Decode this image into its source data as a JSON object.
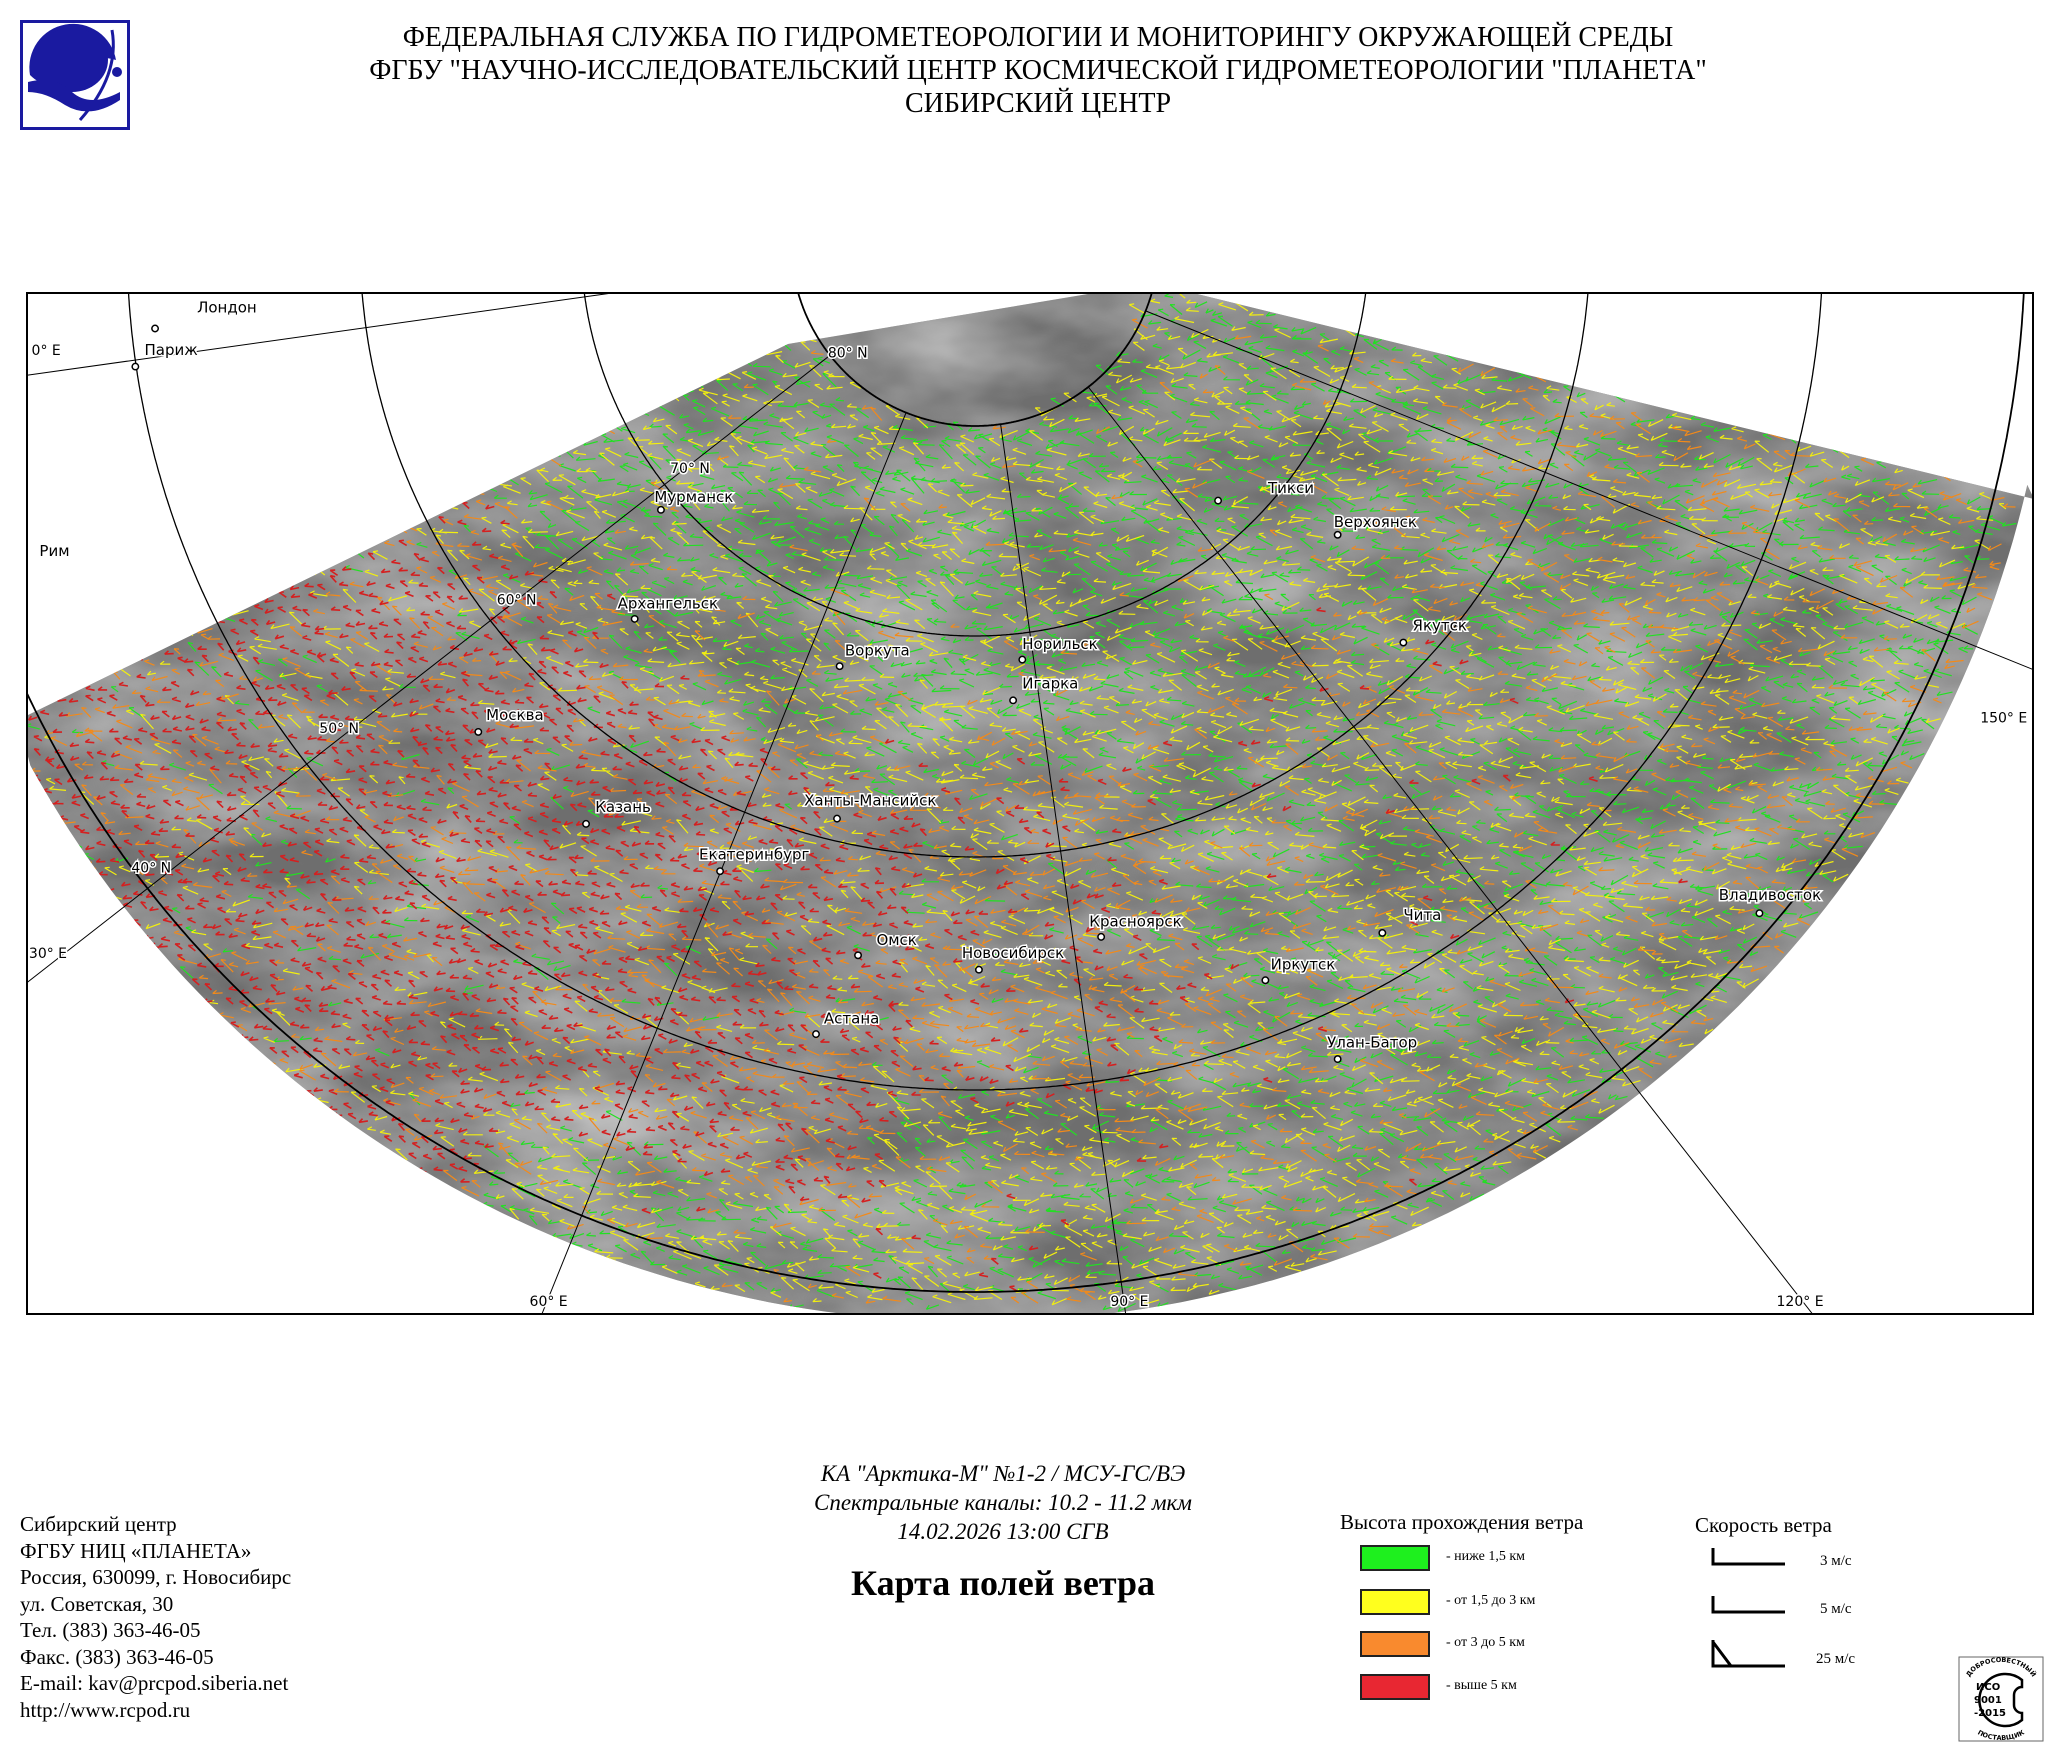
{
  "header": {
    "lines": [
      "ФЕДЕРАЛЬНАЯ СЛУЖБА ПО ГИДРОМЕТЕОРОЛОГИИ И МОНИТОРИНГУ ОКРУЖАЮЩЕЙ СРЕДЫ",
      "ФГБУ \"НАУЧНО-ИССЛЕДОВАТЕЛЬСКИЙ ЦЕНТР КОСМИЧЕСКОЙ ГИДРОМЕТЕОРОЛОГИИ \"ПЛАНЕТА\"",
      "СИБИРСКИЙ ЦЕНТР"
    ],
    "logo_colors": {
      "primary": "#1a1aa0",
      "border": "#1a1aa0"
    }
  },
  "map": {
    "graticule_labels": [
      "80° N",
      "70° N",
      "60° N",
      "50° N",
      "40° N",
      "0° E",
      "30° E",
      "60° E",
      "90° E",
      "120° E",
      "150° E"
    ],
    "cities": [
      "Лондон",
      "Париж",
      "Рим",
      "Мурманск",
      "Архангельск",
      "Воркута",
      "Норильск",
      "Игарка",
      "Тикси",
      "Верхоянск",
      "Якутск",
      "Москва",
      "Казань",
      "Екатеринбург",
      "Ханты-Мансийск",
      "Омск",
      "Новосибирск",
      "Красноярск",
      "Астана",
      "Чита",
      "Иркутск",
      "Улан-Батор",
      "Владивосток"
    ],
    "wind_colors": {
      "low": "#22e022",
      "mid": "#f2ee10",
      "high": "#f28a1a",
      "top": "#d42020"
    }
  },
  "footer": {
    "contact_lines": [
      "Сибирский центр",
      "ФГБУ НИЦ «ПЛАНЕТА»",
      "Россия, 630099, г. Новосибирс",
      "ул. Советская, 30",
      "Тел. (383) 363-46-05",
      "Факс. (383) 363-46-05",
      "E-mail: kav@prcpod.siberia.net",
      "http://www.rcpod.ru"
    ],
    "satellite_lines": [
      "КА \"Арктика-М\" №1-2 / МСУ-ГС/ВЭ",
      "Спектральные каналы: 10.2 - 11.2 мкм",
      "14.02.2026  13:00 СГВ"
    ],
    "title": "Карта полей ветра"
  },
  "legend": {
    "height_title": "Высота прохождения ветра",
    "height_items": [
      {
        "label": "- ниже 1,5 км",
        "color": "#1ef01e"
      },
      {
        "label": "- от 1,5 до 3 км",
        "color": "#ffff1e"
      },
      {
        "label": "- от 3 до 5 км",
        "color": "#f98a2e"
      },
      {
        "label": "- выше 5 км",
        "color": "#e82732"
      }
    ],
    "speed_title": "Скорость ветра",
    "speed_items": [
      "3 м/с",
      "5 м/с",
      "25 м/с"
    ]
  },
  "iso_badge": {
    "top": "ДОБРОСОВЕСТНЫЙ",
    "line1": "ИСО",
    "line2": "9001",
    "line3": "-2015",
    "bottom": "ПОСТАВЩИК"
  }
}
